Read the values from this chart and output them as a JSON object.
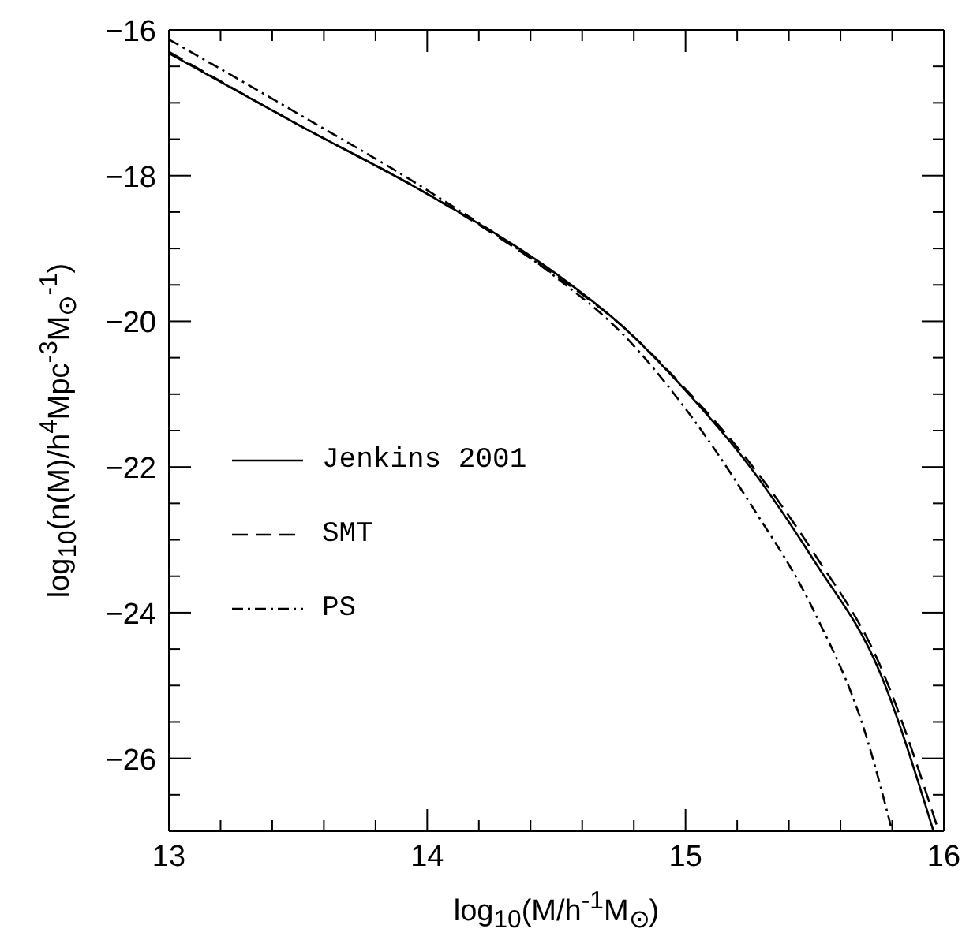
{
  "chart_data": {
    "type": "line",
    "xlabel": "log$_{10}$(M/h$^{-1}$M$_{⊙}$)",
    "ylabel": "log$_{10}$(n(M)/h$^{4}$Mpc$^{-3}$M$_{⊙}$$^{-1}$)",
    "xlim": [
      13,
      16
    ],
    "ylim": [
      -27,
      -16
    ],
    "xticks": [
      13,
      {
        "value": 13.2,
        "label": null
      },
      {
        "value": 13.4,
        "label": null
      },
      {
        "value": 13.6,
        "label": null
      },
      {
        "value": 13.8,
        "label": null
      },
      14,
      {
        "value": 14.2,
        "label": null
      },
      {
        "value": 14.4,
        "label": null
      },
      {
        "value": 14.6,
        "label": null
      },
      {
        "value": 14.8,
        "label": null
      },
      15,
      {
        "value": 15.2,
        "label": null
      },
      {
        "value": 15.4,
        "label": null
      },
      {
        "value": 15.6,
        "label": null
      },
      {
        "value": 15.8,
        "label": null
      },
      16
    ],
    "yticks": [
      {
        "value": -27,
        "label": null
      },
      {
        "value": -26.5,
        "label": null
      },
      -26,
      {
        "value": -25.5,
        "label": null
      },
      {
        "value": -25,
        "label": null
      },
      {
        "value": -24.5,
        "label": null
      },
      -24,
      {
        "value": -23.5,
        "label": null
      },
      {
        "value": -23,
        "label": null
      },
      {
        "value": -22.5,
        "label": null
      },
      -22,
      {
        "value": -21.5,
        "label": null
      },
      {
        "value": -21,
        "label": null
      },
      {
        "value": -20.5,
        "label": null
      },
      -20,
      {
        "value": -19.5,
        "label": null
      },
      {
        "value": -19,
        "label": null
      },
      {
        "value": -18.5,
        "label": null
      },
      -18,
      {
        "value": -17.5,
        "label": null
      },
      {
        "value": -17,
        "label": null
      },
      {
        "value": -16.5,
        "label": null
      },
      -16
    ],
    "legend": "left",
    "marker": "none",
    "series": [
      {
        "name": "Jenkins 2001",
        "color": "#000000",
        "line_style": "solid",
        "x": [
          13,
          13.5,
          14,
          14.5,
          14.75,
          15,
          15.25,
          15.5,
          15.75,
          15.96
        ],
        "values": [
          -16.32,
          -17.3,
          -18.25,
          -19.35,
          -20.05,
          -20.95,
          -22.0,
          -23.3,
          -24.8,
          -27
        ]
      },
      {
        "name": "SMT",
        "color": "#000000",
        "line_style": "dashed",
        "x": [
          13,
          13.5,
          14,
          14.5,
          14.75,
          15,
          15.25,
          15.5,
          15.75,
          15.98
        ],
        "values": [
          -16.3,
          -17.3,
          -18.25,
          -19.38,
          -20.05,
          -20.93,
          -21.95,
          -23.2,
          -24.7,
          -27
        ]
      },
      {
        "name": "PS",
        "color": "#000000",
        "line_style": "dotted",
        "x": [
          13,
          13.5,
          14,
          14.5,
          14.75,
          15,
          15.25,
          15.5,
          15.7,
          15.8
        ],
        "values": [
          -16.13,
          -17.15,
          -18.2,
          -19.4,
          -20.15,
          -21.2,
          -22.5,
          -24.0,
          -25.7,
          -27
        ]
      }
    ]
  }
}
